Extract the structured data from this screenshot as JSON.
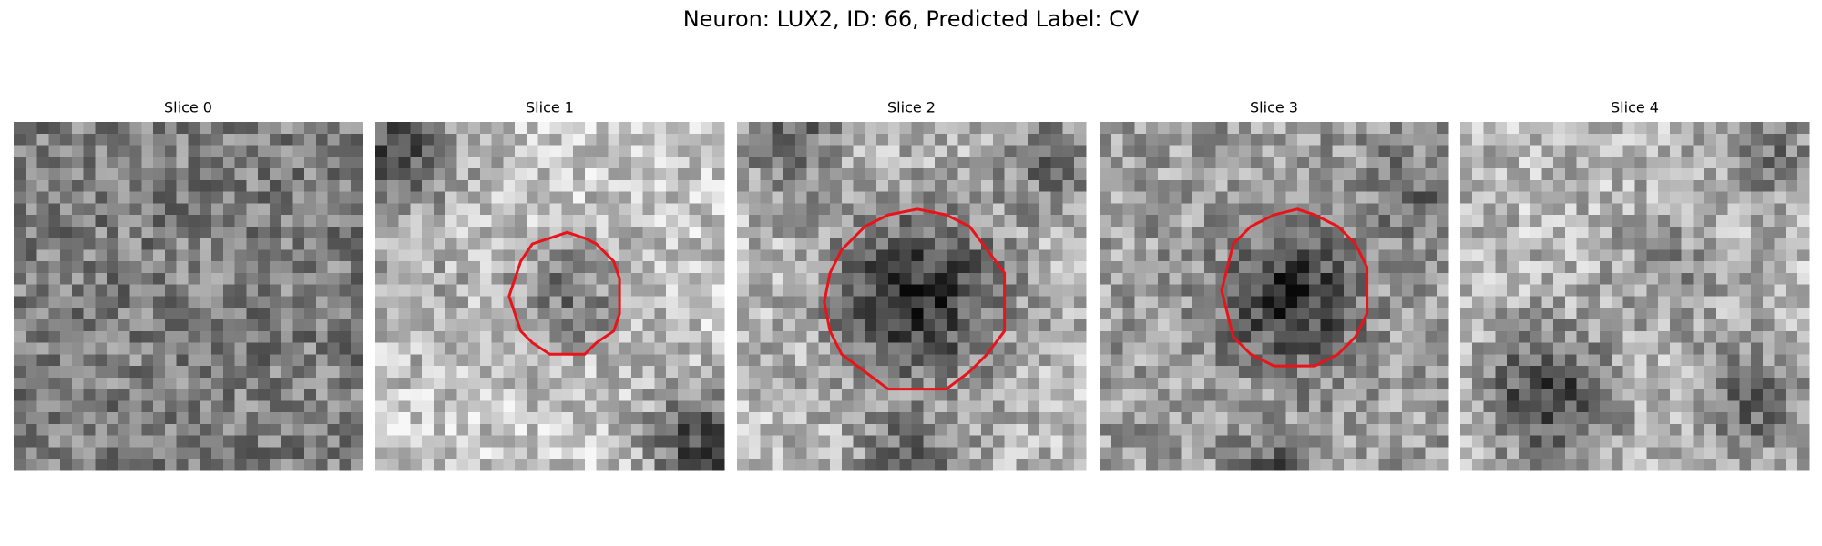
{
  "title": "Neuron: LUX2, ID: 66, Predicted Label: CV",
  "panels": [
    {
      "title": "Slice 0"
    },
    {
      "title": "Slice 1"
    },
    {
      "title": "Slice 2"
    },
    {
      "title": "Slice 3"
    },
    {
      "title": "Slice 4"
    }
  ]
}
